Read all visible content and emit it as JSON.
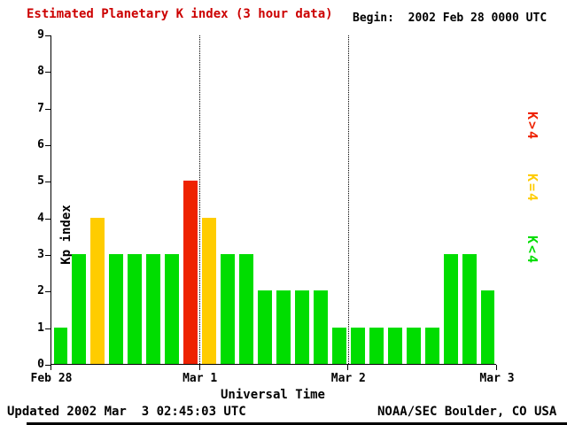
{
  "title": "Estimated Planetary K index (3 hour data)",
  "begin_label": "Begin:  2002 Feb 28 0000 UTC",
  "updated": "Updated 2002 Mar  3 02:45:03 UTC",
  "credit": "NOAA/SEC Boulder, CO USA",
  "colors": {
    "title": "#cc0000",
    "low": "#00dd00",
    "mid": "#ffcc00",
    "high": "#ee2200",
    "axis": "#000000"
  },
  "legend": [
    {
      "label": "K>4",
      "color": "#ee2200"
    },
    {
      "label": "K=4",
      "color": "#ffcc00"
    },
    {
      "label": "K<4",
      "color": "#00dd00"
    }
  ],
  "chart_data": {
    "type": "bar",
    "title": "Estimated Planetary K index (3 hour data)",
    "xlabel": "Universal Time",
    "ylabel": "Kp index",
    "ylim": [
      0,
      9
    ],
    "y_ticks": [
      0,
      1,
      2,
      3,
      4,
      5,
      6,
      7,
      8,
      9
    ],
    "x_ticks": [
      "Feb 28",
      "Mar 1",
      "Mar 2",
      "Mar 3"
    ],
    "bins_per_day": 8,
    "bin_hours": 3,
    "values": [
      1,
      3,
      4,
      3,
      3,
      3,
      3,
      5,
      4,
      3,
      3,
      2,
      2,
      2,
      2,
      1,
      1,
      1,
      1,
      1,
      1,
      3,
      3,
      2
    ],
    "color_rule": "green if K<4, yellow if K=4, red if K>4",
    "grid": "dotted vertical lines at day boundaries",
    "legend_position": "right"
  }
}
